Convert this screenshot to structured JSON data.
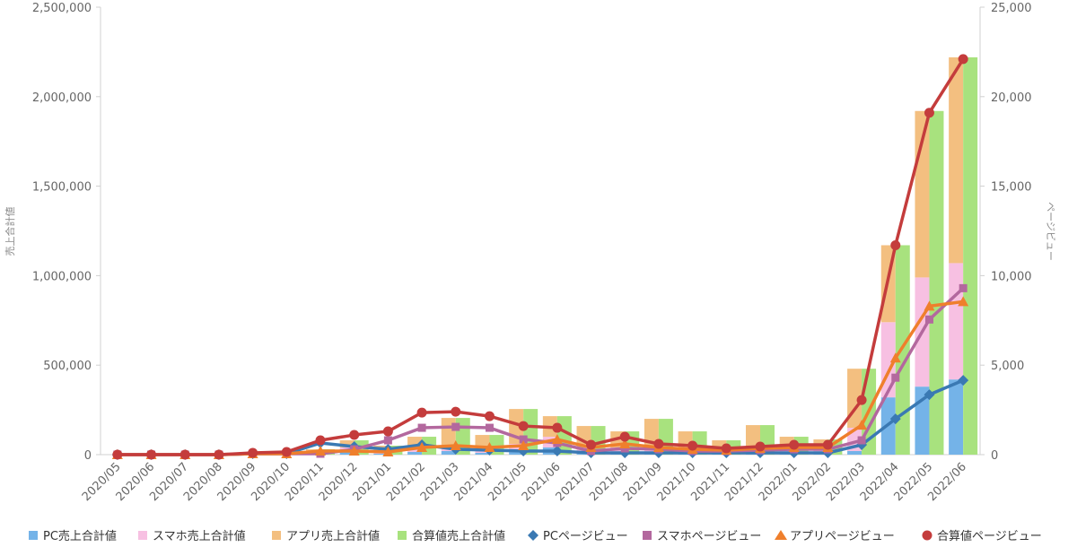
{
  "chart_data": {
    "type": "bar",
    "stacked_bars": true,
    "categories": [
      "2020/05",
      "2020/06",
      "2020/07",
      "2020/08",
      "2020/09",
      "2020/10",
      "2020/11",
      "2020/12",
      "2021/01",
      "2021/02",
      "2021/03",
      "2021/04",
      "2021/05",
      "2021/06",
      "2021/07",
      "2021/08",
      "2021/09",
      "2021/10",
      "2021/11",
      "2021/12",
      "2022/01",
      "2022/02",
      "2022/03",
      "2022/04",
      "2022/05",
      "2022/06"
    ],
    "y_left": {
      "label": "売上合計値",
      "lim": [
        0,
        2500000
      ],
      "ticks": [
        "0",
        "500,000",
        "1,000,000",
        "1,500,000",
        "2,000,000",
        "2,500,000"
      ]
    },
    "y_right": {
      "label": "ページビュー",
      "lim": [
        0,
        25000
      ],
      "ticks": [
        "0",
        "5,000",
        "10,000",
        "15,000",
        "20,000",
        "25,000"
      ]
    },
    "bar_series": [
      {
        "name": "PC売上合計値",
        "color": "#74b3e8",
        "stack": "device",
        "values": [
          0,
          0,
          0,
          0,
          0,
          0,
          0,
          15000,
          5000,
          15000,
          20000,
          10000,
          15000,
          40000,
          5000,
          10000,
          10000,
          5000,
          5000,
          5000,
          5000,
          5000,
          20000,
          320000,
          380000,
          420000
        ]
      },
      {
        "name": "スマホ売上合計値",
        "color": "#f7c0e2",
        "stack": "device",
        "values": [
          0,
          0,
          0,
          0,
          0,
          0,
          10000,
          25000,
          15000,
          25000,
          35000,
          30000,
          45000,
          60000,
          35000,
          30000,
          40000,
          25000,
          20000,
          35000,
          25000,
          20000,
          130000,
          420000,
          610000,
          650000
        ]
      },
      {
        "name": "アプリ売上合計値",
        "color": "#f3bf80",
        "stack": "device",
        "values": [
          0,
          0,
          0,
          0,
          0,
          0,
          20000,
          40000,
          30000,
          60000,
          150000,
          70000,
          195000,
          115000,
          120000,
          90000,
          150000,
          100000,
          55000,
          125000,
          70000,
          60000,
          330000,
          430000,
          930000,
          1150000
        ]
      },
      {
        "name": "合算値売上合計値",
        "color": "#a8e27e",
        "stack": "total",
        "values": [
          0,
          0,
          0,
          0,
          0,
          0,
          30000,
          80000,
          50000,
          100000,
          205000,
          110000,
          255000,
          215000,
          160000,
          130000,
          200000,
          130000,
          80000,
          165000,
          100000,
          85000,
          480000,
          1170000,
          1920000,
          2220000
        ]
      }
    ],
    "line_series": [
      {
        "name": "PCページビュー",
        "color": "#3a79b3",
        "marker": "diamond",
        "values": [
          0,
          0,
          0,
          0,
          50,
          50,
          650,
          450,
          300,
          550,
          300,
          250,
          200,
          200,
          100,
          100,
          100,
          100,
          100,
          100,
          100,
          100,
          550,
          2000,
          3350,
          4150
        ]
      },
      {
        "name": "スマホページビュー",
        "color": "#b3689e",
        "marker": "square",
        "values": [
          0,
          0,
          0,
          0,
          50,
          50,
          50,
          300,
          800,
          1500,
          1550,
          1500,
          850,
          650,
          200,
          350,
          300,
          200,
          200,
          250,
          300,
          300,
          800,
          4300,
          7550,
          9300
        ]
      },
      {
        "name": "アプリページビュー",
        "color": "#ef7f2c",
        "marker": "triangle",
        "values": [
          0,
          0,
          0,
          0,
          50,
          50,
          200,
          200,
          150,
          400,
          500,
          400,
          500,
          850,
          400,
          600,
          400,
          300,
          250,
          350,
          400,
          400,
          1650,
          5400,
          8300,
          8550
        ]
      },
      {
        "name": "合算値ページビュー",
        "color": "#c43c3c",
        "marker": "circle",
        "values": [
          0,
          0,
          0,
          0,
          100,
          150,
          800,
          1100,
          1300,
          2350,
          2400,
          2150,
          1600,
          1500,
          550,
          1000,
          600,
          500,
          350,
          450,
          550,
          550,
          3050,
          11700,
          19100,
          22100
        ]
      }
    ],
    "legend": {
      "position": "bottom"
    },
    "grid": false
  }
}
